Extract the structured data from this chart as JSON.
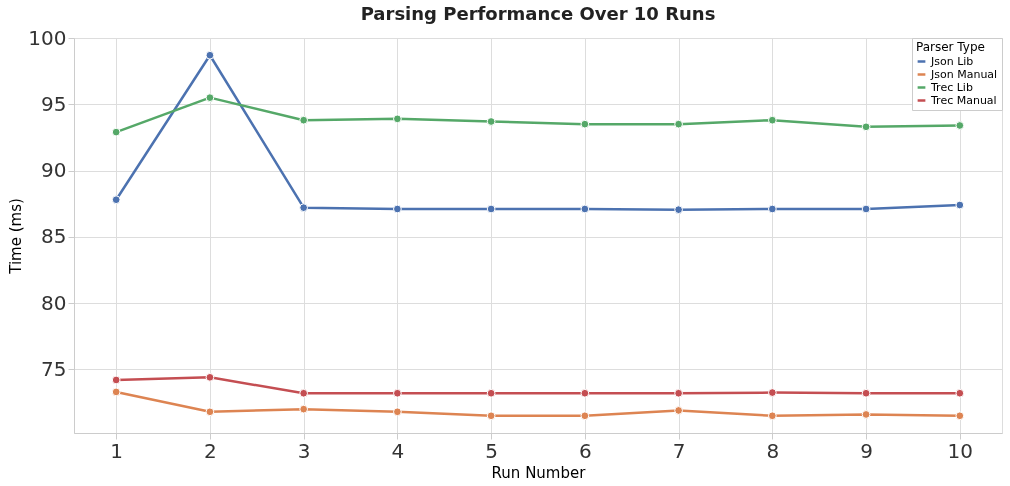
{
  "chart_data": {
    "type": "line",
    "title": "Parsing Performance Over 10 Runs",
    "xlabel": "Run Number",
    "ylabel": "Time (ms)",
    "legend_title": "Parser Type",
    "x": [
      1,
      2,
      3,
      4,
      5,
      6,
      7,
      8,
      9,
      10
    ],
    "series": [
      {
        "name": "Json Lib",
        "color": "#4c72b0",
        "values": [
          87.8,
          98.7,
          87.2,
          87.1,
          87.1,
          87.1,
          87.05,
          87.1,
          87.1,
          87.4
        ]
      },
      {
        "name": "Json Manual",
        "color": "#dd8452",
        "values": [
          73.3,
          71.8,
          72.0,
          71.8,
          71.5,
          71.5,
          71.9,
          71.5,
          71.6,
          71.5
        ]
      },
      {
        "name": "Trec Lib",
        "color": "#55a868",
        "values": [
          92.9,
          95.5,
          93.8,
          93.9,
          93.7,
          93.5,
          93.5,
          93.8,
          93.3,
          93.4
        ]
      },
      {
        "name": "Trec Manual",
        "color": "#c44e52",
        "values": [
          74.2,
          74.4,
          73.2,
          73.2,
          73.2,
          73.2,
          73.2,
          73.25,
          73.2,
          73.2
        ]
      }
    ],
    "xlim": [
      0.55,
      10.45
    ],
    "ylim": [
      70.2,
      100
    ],
    "xticks": [
      1,
      2,
      3,
      4,
      5,
      6,
      7,
      8,
      9,
      10
    ],
    "yticks": [
      75,
      80,
      85,
      90,
      95,
      100
    ],
    "grid": true,
    "legend": "top right",
    "marker": "circle",
    "line_style": "solid"
  }
}
